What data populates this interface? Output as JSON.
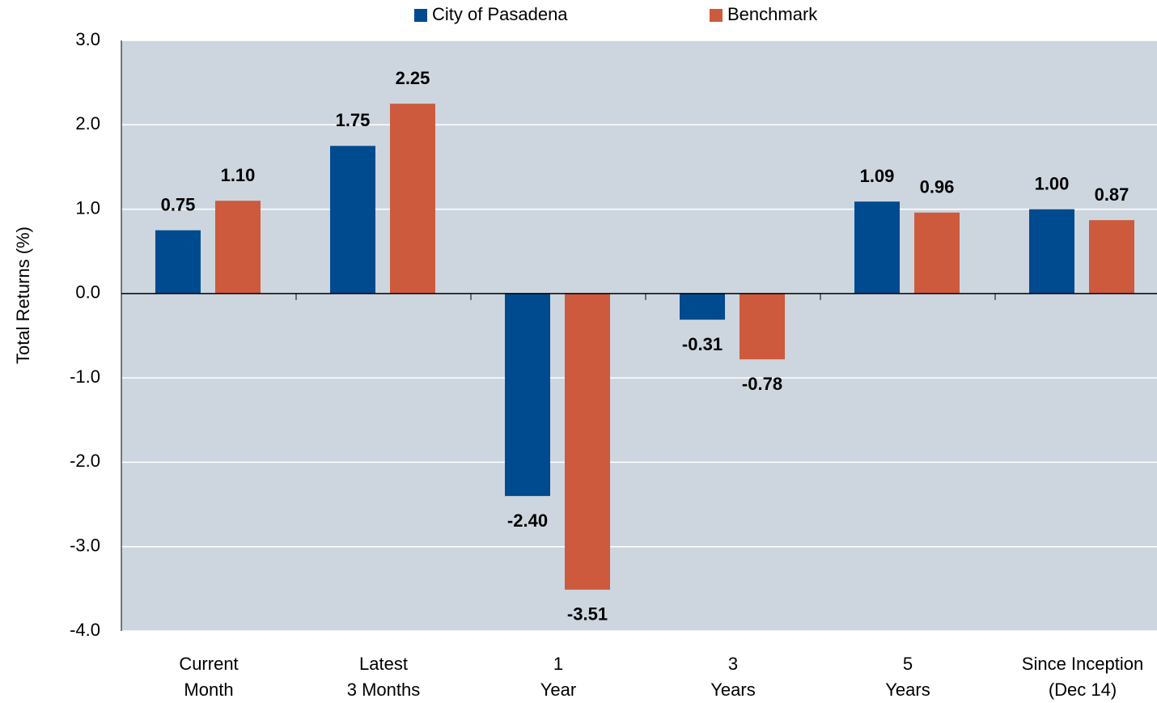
{
  "chart_data": {
    "type": "bar",
    "ylabel": "Total Returns (%)",
    "categories": [
      [
        "Current",
        "Month"
      ],
      [
        "Latest",
        "3 Months"
      ],
      [
        "1",
        "Year"
      ],
      [
        "3",
        "Years"
      ],
      [
        "5",
        "Years"
      ],
      [
        "Since Inception",
        "(Dec 14)"
      ]
    ],
    "series": [
      {
        "name": "City of Pasadena",
        "color": "#004a8f",
        "values": [
          0.75,
          1.75,
          -2.4,
          -0.31,
          1.09,
          1.0
        ],
        "value_labels": [
          "0.75",
          "1.75",
          "-2.40",
          "-0.31",
          "1.09",
          "1.00"
        ]
      },
      {
        "name": "Benchmark",
        "color": "#cd5a3c",
        "values": [
          1.1,
          2.25,
          -3.51,
          -0.78,
          0.96,
          0.87
        ],
        "value_labels": [
          "1.10",
          "2.25",
          "-3.51",
          "-0.78",
          "0.96",
          "0.87"
        ]
      }
    ],
    "ylim": [
      -4,
      3
    ],
    "yticks": [
      {
        "value": 3,
        "label": "3.0"
      },
      {
        "value": 2,
        "label": "2.0"
      },
      {
        "value": 1,
        "label": "1.0"
      },
      {
        "value": 0,
        "label": "0.0"
      },
      {
        "value": -1,
        "label": "-1.0"
      },
      {
        "value": -2,
        "label": "-2.0"
      },
      {
        "value": -3,
        "label": "-3.0"
      },
      {
        "value": -4,
        "label": "-4.0"
      }
    ],
    "grid": true,
    "legend": "top"
  }
}
